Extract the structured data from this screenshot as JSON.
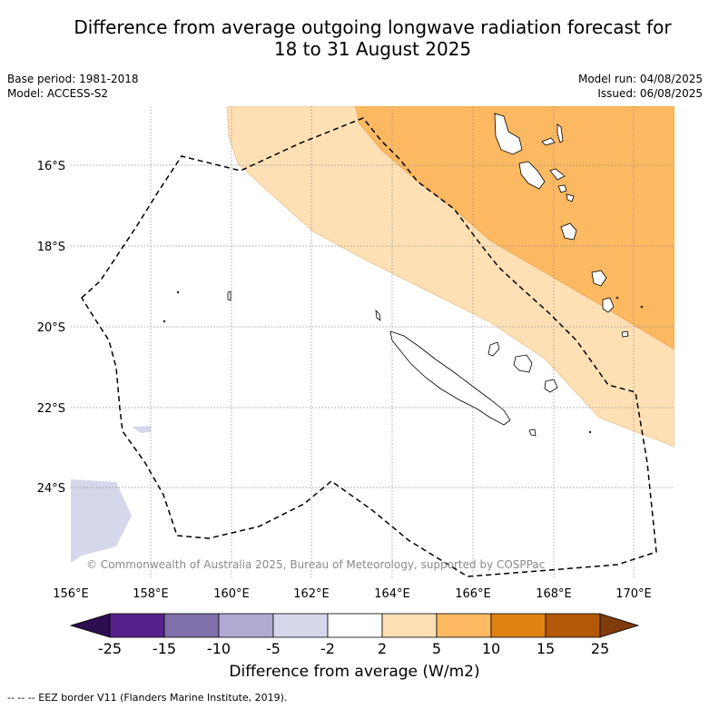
{
  "title_line1": "Difference from average outgoing longwave radiation forecast for",
  "title_line2": "18 to 31 August 2025",
  "base_period": "Base period: 1981-2018",
  "model": "Model: ACCESS-S2",
  "model_run": "Model run: 04/08/2025",
  "issued": "Issued: 06/08/2025",
  "lat_labels": [
    "16°S",
    "18°S",
    "20°S",
    "22°S",
    "24°S"
  ],
  "lon_labels": [
    "156°E",
    "158°E",
    "160°E",
    "162°E",
    "164°E",
    "166°E",
    "168°E",
    "170°E"
  ],
  "map_extent": {
    "lon_min": 156.0,
    "lon_max": 171.0,
    "lat_min": -26.2,
    "lat_max": -14.5
  },
  "copyright": "© Commonwealth of Australia 2025, Bureau of Meteorology, supported by COSPPac",
  "colorbar": {
    "label": "Difference from average (W/m2)",
    "ticks": [
      "-25",
      "-15",
      "-10",
      "-5",
      "-2",
      "2",
      "5",
      "10",
      "15",
      "25"
    ],
    "colors": [
      "#2d0e4e",
      "#56218a",
      "#7f6fab",
      "#b0a9d2",
      "#d7d7eb",
      "#ffffff",
      "#fee0b4",
      "#fdb862",
      "#e08214",
      "#b35806",
      "#7f3b08"
    ]
  },
  "footer": "--  --  -- EEZ border V11 (Flanders Marine Institute, 2019)."
}
